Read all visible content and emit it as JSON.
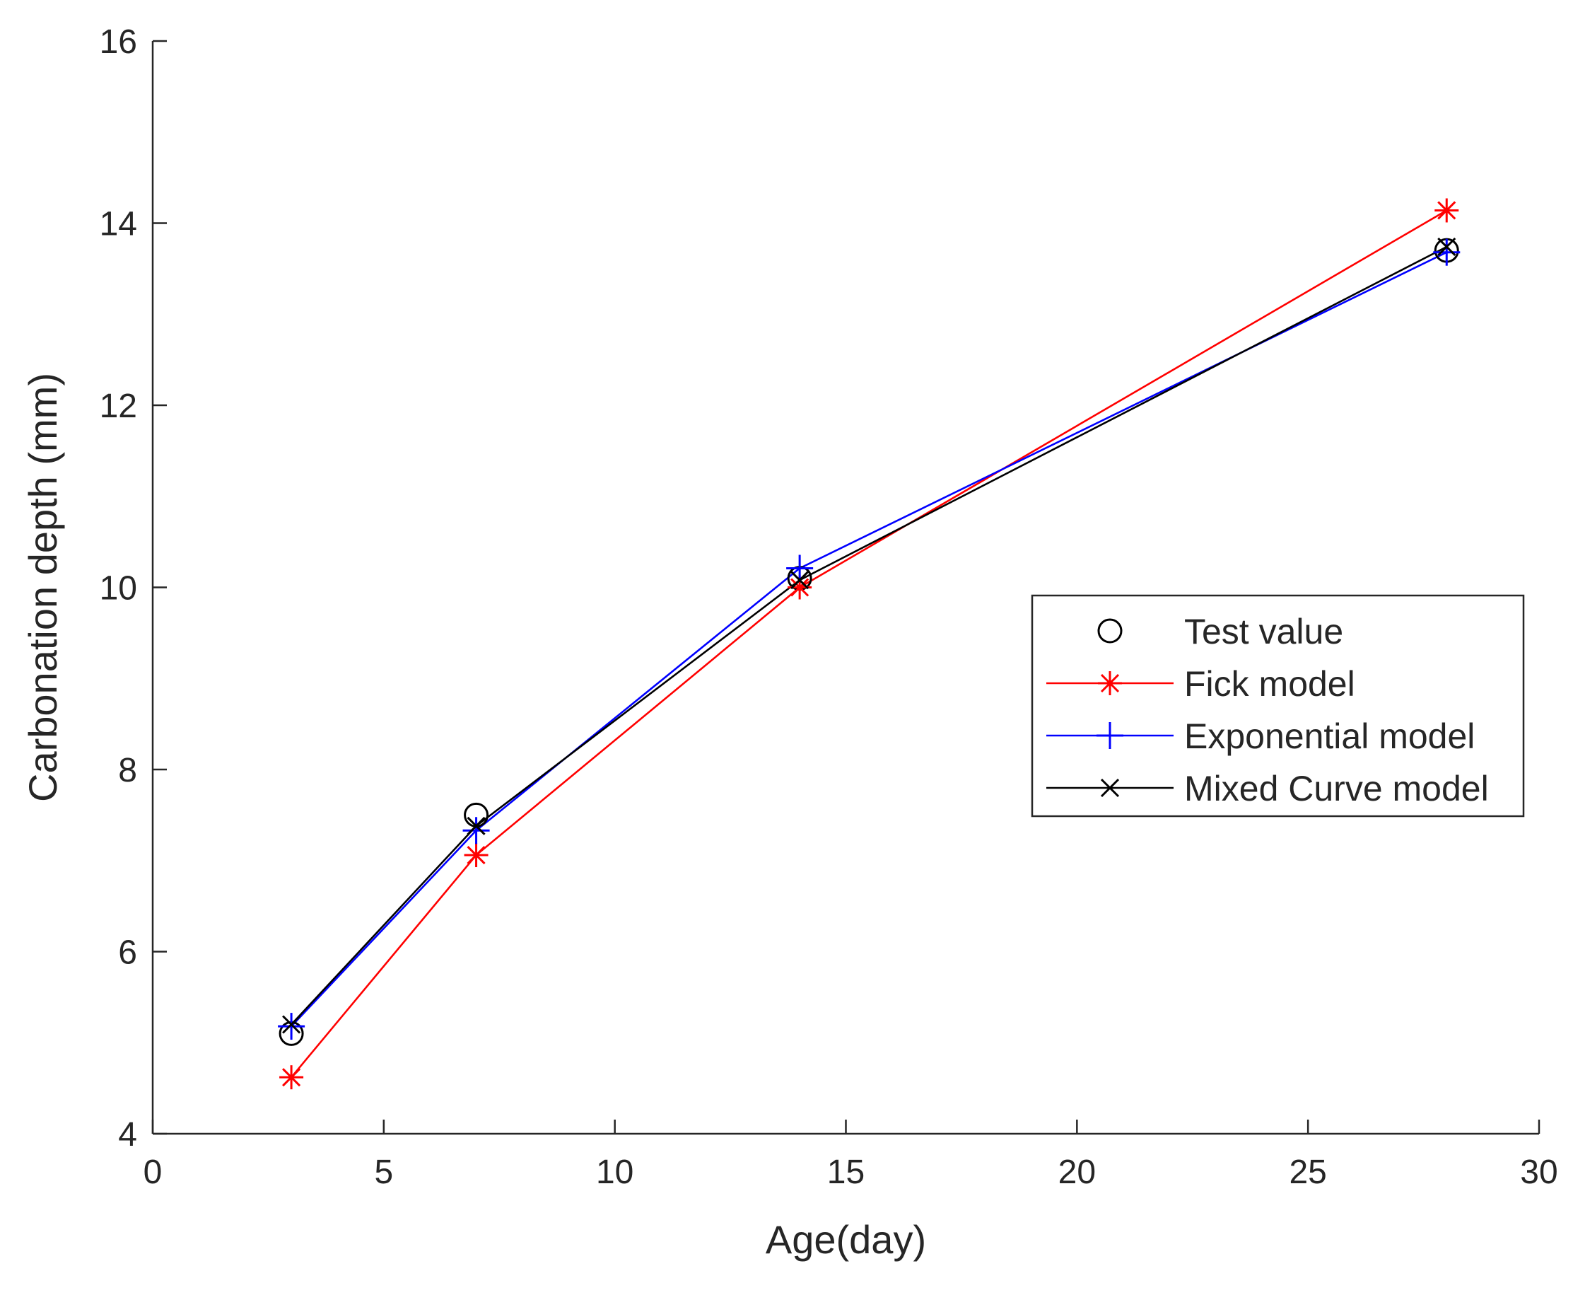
{
  "chart_data": {
    "type": "line",
    "title": "",
    "xlabel": "Age(day)",
    "ylabel": "Carbonation depth (mm)",
    "xlim": [
      0,
      30
    ],
    "ylim": [
      4,
      16
    ],
    "xticks": [
      0,
      5,
      10,
      15,
      20,
      25,
      30
    ],
    "yticks": [
      4,
      6,
      8,
      10,
      12,
      14,
      16
    ],
    "x": [
      3,
      7,
      14,
      28
    ],
    "grid": false,
    "legend_position": "right",
    "series": [
      {
        "name": "Test value",
        "values": [
          5.1,
          7.5,
          10.1,
          13.7
        ],
        "color": "#000000",
        "marker": "circle",
        "line": false
      },
      {
        "name": "Fick model",
        "values": [
          4.62,
          7.06,
          10.0,
          14.14
        ],
        "color": "#ff0000",
        "marker": "star",
        "line": true
      },
      {
        "name": "Exponential model",
        "values": [
          5.18,
          7.33,
          10.21,
          13.68
        ],
        "color": "#0000ff",
        "marker": "plus",
        "line": true
      },
      {
        "name": "Mixed Curve model",
        "values": [
          5.2,
          7.38,
          10.08,
          13.74
        ],
        "color": "#000000",
        "marker": "x",
        "line": true
      }
    ]
  }
}
